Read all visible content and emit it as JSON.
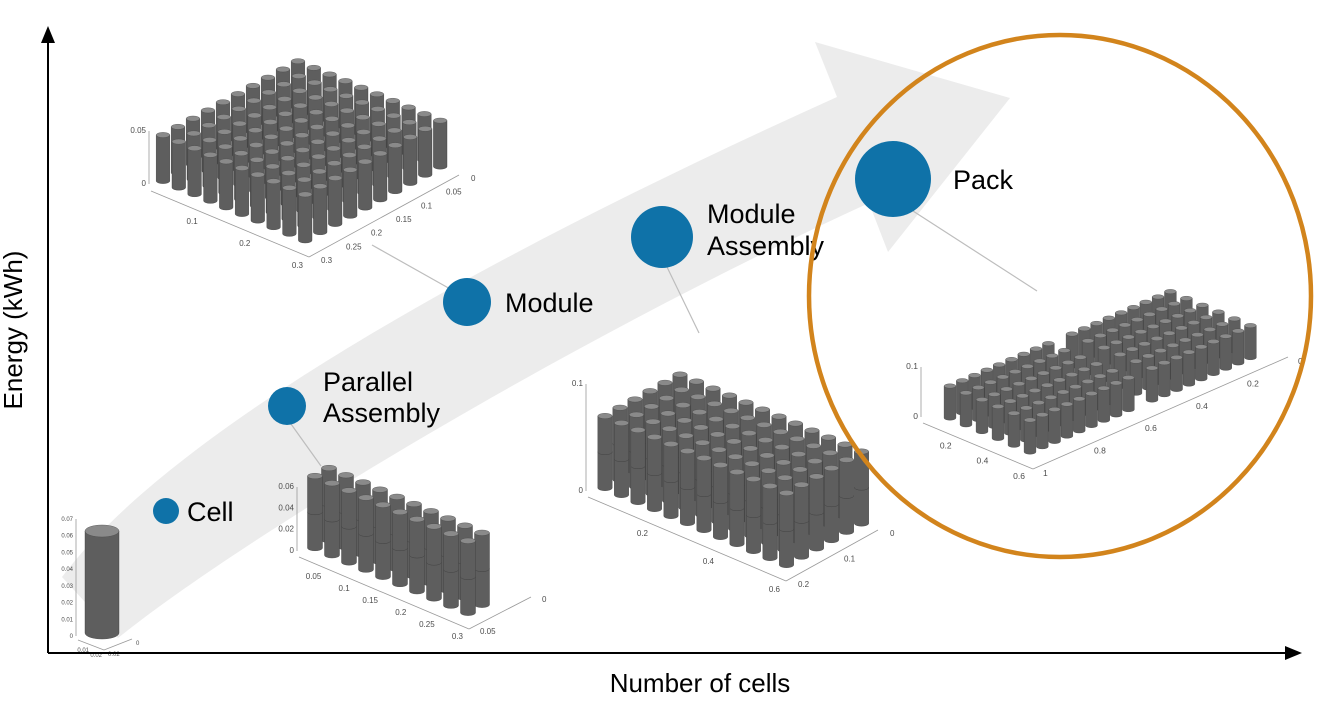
{
  "figure": {
    "x_axis_label": "Number of cells",
    "y_axis_label": "Energy (kWh)"
  },
  "colors": {
    "stage_dot": "#0f72a8",
    "arrow": "#ececec",
    "highlight_ellipse": "#d2841c",
    "cylinder_body": "#5e5e5e",
    "cylinder_top": "#8a8a8a"
  },
  "stages": [
    {
      "id": "cell",
      "label_lines": [
        "Cell"
      ]
    },
    {
      "id": "parallel_assembly",
      "label_lines": [
        "Parallel",
        "Assembly"
      ]
    },
    {
      "id": "module",
      "label_lines": [
        "Module"
      ]
    },
    {
      "id": "module_assembly",
      "label_lines": [
        "Module",
        "Assembly"
      ]
    },
    {
      "id": "pack",
      "label_lines": [
        "Pack"
      ]
    }
  ],
  "plots": {
    "cell": {
      "z_ticks": [
        "0.07",
        "0.06",
        "0.05",
        "0.04",
        "0.03",
        "0.02",
        "0.01",
        "0"
      ],
      "x_ticks": [
        "0.01",
        "0.02"
      ],
      "y_ticks": [
        "0.02",
        "0"
      ]
    },
    "module": {
      "z_ticks": [
        "0.05",
        "0"
      ],
      "x_ticks": [
        "0.1",
        "0.2",
        "0.3"
      ],
      "y_ticks": [
        "0.3",
        "0.25",
        "0.2",
        "0.15",
        "0.1",
        "0.05",
        "0"
      ]
    },
    "parallel_assembly": {
      "z_ticks": [
        "0.06",
        "0.04",
        "0.02",
        "0"
      ],
      "x_ticks": [
        "0.05",
        "0.1",
        "0.15",
        "0.2",
        "0.25",
        "0.3"
      ],
      "y_ticks": [
        "0.05",
        "0"
      ]
    },
    "module_assembly": {
      "z_ticks": [
        "0.1",
        "0"
      ],
      "x_ticks": [
        "0.2",
        "0.4",
        "0.6"
      ],
      "y_ticks": [
        "0.2",
        "0.1",
        "0"
      ]
    },
    "pack": {
      "z_ticks": [
        "0.1",
        "0"
      ],
      "x_ticks": [
        "0.2",
        "0.4",
        "0.6"
      ],
      "y_ticks": [
        "1",
        "0.8",
        "0.6",
        "0.4",
        "0.2",
        "0"
      ]
    }
  }
}
